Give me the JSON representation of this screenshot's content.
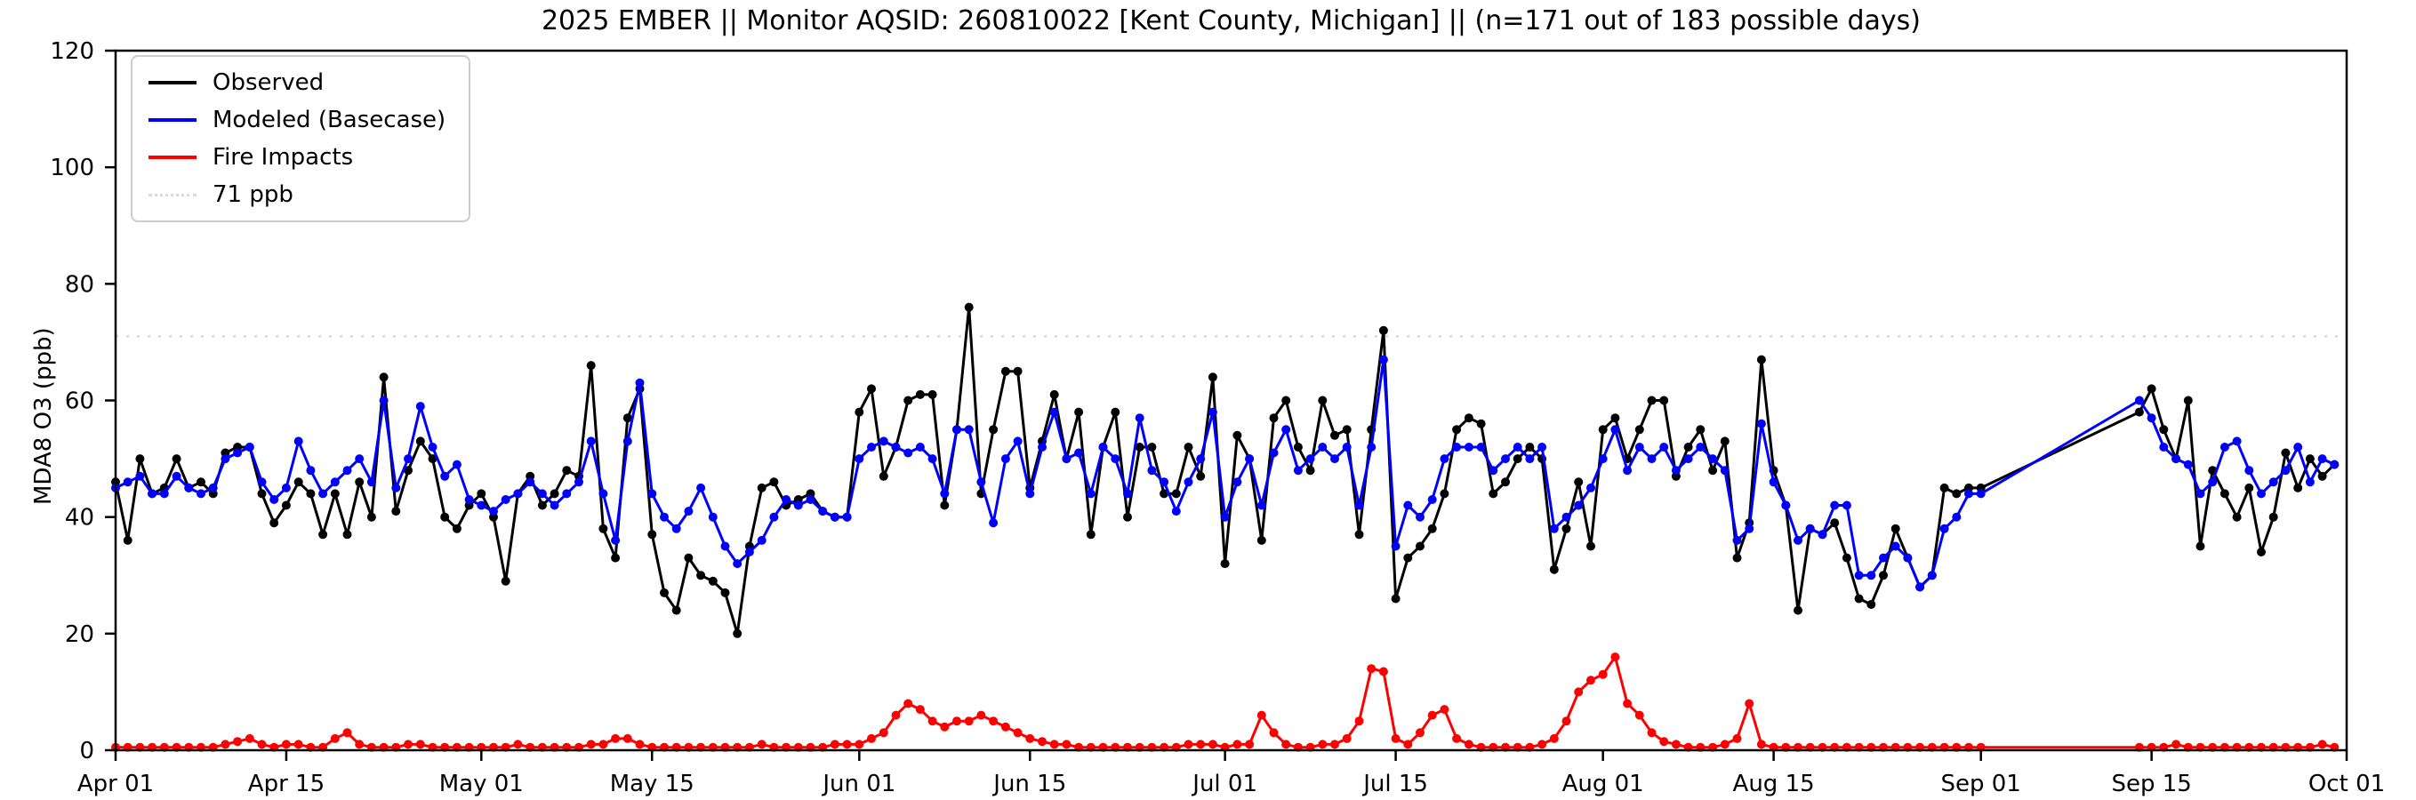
{
  "title": "2025 EMBER || Monitor AQSID: 260810022 [Kent County, Michigan] || (n=171 out of 183 possible days)",
  "chart_data": {
    "type": "line",
    "title": "2025 EMBER || Monitor AQSID: 260810022 [Kent County, Michigan] || (n=171 out of 183 possible days)",
    "xlabel": "",
    "ylabel": "MDA8 O3 (ppb)",
    "ylim": [
      0,
      120
    ],
    "yticks": [
      0,
      20,
      40,
      60,
      80,
      100,
      120
    ],
    "xlim": [
      0,
      183
    ],
    "xticks": [
      {
        "label": "Apr 01",
        "day": 0
      },
      {
        "label": "Apr 15",
        "day": 14
      },
      {
        "label": "May 01",
        "day": 30
      },
      {
        "label": "May 15",
        "day": 44
      },
      {
        "label": "Jun 01",
        "day": 61
      },
      {
        "label": "Jun 15",
        "day": 75
      },
      {
        "label": "Jul 01",
        "day": 91
      },
      {
        "label": "Jul 15",
        "day": 105
      },
      {
        "label": "Aug 01",
        "day": 122
      },
      {
        "label": "Aug 15",
        "day": 136
      },
      {
        "label": "Sep 01",
        "day": 153
      },
      {
        "label": "Sep 15",
        "day": 167
      },
      {
        "label": "Oct 01",
        "day": 183
      }
    ],
    "grid": false,
    "legend_position": "upper-left",
    "reference_line": {
      "label": "71 ppb",
      "value": 71,
      "color": "#d9d9d9",
      "style": "dotted"
    },
    "day_index_ranges": [
      [
        0,
        153
      ],
      [
        166,
        182
      ]
    ],
    "series": [
      {
        "id": "observed",
        "name": "Observed",
        "color": "#000000",
        "marker": "circle",
        "values": [
          46,
          36,
          50,
          44,
          45,
          50,
          45,
          46,
          44,
          51,
          52,
          52,
          44,
          39,
          42,
          46,
          44,
          37,
          44,
          37,
          46,
          40,
          64,
          41,
          48,
          53,
          50,
          40,
          38,
          42,
          44,
          40,
          29,
          44,
          47,
          42,
          44,
          48,
          47,
          66,
          38,
          33,
          57,
          62,
          37,
          27,
          24,
          33,
          30,
          29,
          27,
          20,
          35,
          45,
          46,
          42,
          43,
          44,
          41,
          40,
          40,
          58,
          62,
          47,
          52,
          60,
          61,
          61,
          42,
          55,
          76,
          44,
          55,
          65,
          65,
          45,
          53,
          61,
          50,
          58,
          37,
          52,
          58,
          40,
          52,
          52,
          44,
          44,
          52,
          47,
          64,
          32,
          54,
          50,
          36,
          57,
          60,
          52,
          48,
          60,
          54,
          55,
          37,
          55,
          72,
          26,
          33,
          35,
          38,
          44,
          55,
          57,
          56,
          44,
          46,
          50,
          52,
          50,
          31,
          38,
          46,
          35,
          55,
          57,
          50,
          55,
          60,
          60,
          47,
          52,
          55,
          48,
          53,
          33,
          39,
          67,
          48,
          42,
          24,
          38,
          37,
          39,
          33,
          26,
          25,
          30,
          38,
          33,
          28,
          30,
          45,
          44,
          45,
          45,
          58,
          62,
          55,
          50,
          60,
          35,
          48,
          44,
          40,
          45,
          34,
          40,
          51,
          45,
          50,
          47,
          49
        ]
      },
      {
        "id": "modeled",
        "name": "Modeled (Basecase)",
        "color": "#0000ff",
        "marker": "circle",
        "values": [
          45,
          46,
          47,
          44,
          44,
          47,
          45,
          44,
          45,
          50,
          51,
          52,
          46,
          43,
          45,
          53,
          48,
          44,
          46,
          48,
          50,
          46,
          60,
          45,
          50,
          59,
          52,
          47,
          49,
          43,
          42,
          41,
          43,
          44,
          46,
          44,
          42,
          44,
          46,
          53,
          44,
          36,
          53,
          63,
          44,
          40,
          38,
          41,
          45,
          40,
          35,
          32,
          34,
          36,
          40,
          43,
          42,
          43,
          41,
          40,
          40,
          50,
          52,
          53,
          52,
          51,
          52,
          50,
          44,
          55,
          55,
          46,
          39,
          50,
          53,
          44,
          52,
          58,
          50,
          51,
          44,
          52,
          50,
          44,
          57,
          48,
          46,
          41,
          46,
          50,
          58,
          40,
          46,
          50,
          42,
          51,
          55,
          48,
          50,
          52,
          50,
          52,
          42,
          52,
          67,
          35,
          42,
          40,
          43,
          50,
          52,
          52,
          52,
          48,
          50,
          52,
          50,
          52,
          38,
          40,
          42,
          45,
          50,
          55,
          48,
          52,
          50,
          52,
          48,
          50,
          52,
          50,
          48,
          36,
          38,
          56,
          46,
          42,
          36,
          38,
          37,
          42,
          42,
          30,
          30,
          33,
          35,
          33,
          28,
          30,
          38,
          40,
          44,
          44,
          60,
          57,
          52,
          50,
          49,
          44,
          46,
          52,
          53,
          48,
          44,
          46,
          48,
          52,
          46,
          50,
          49
        ]
      },
      {
        "id": "fire",
        "name": "Fire Impacts",
        "color": "#ff0000",
        "marker": "circle",
        "values": [
          0.5,
          0.5,
          0.5,
          0.5,
          0.5,
          0.5,
          0.5,
          0.5,
          0.5,
          1,
          1.5,
          2,
          1,
          0.5,
          1,
          1,
          0.5,
          0.5,
          2,
          3,
          1,
          0.5,
          0.5,
          0.5,
          1,
          1,
          0.5,
          0.5,
          0.5,
          0.5,
          0.5,
          0.5,
          0.5,
          1,
          0.5,
          0.5,
          0.5,
          0.5,
          0.5,
          1,
          1,
          2,
          2,
          1,
          0.5,
          0.5,
          0.5,
          0.5,
          0.5,
          0.5,
          0.5,
          0.5,
          0.5,
          1,
          0.5,
          0.5,
          0.5,
          0.5,
          0.5,
          1,
          1,
          1,
          2,
          3,
          6,
          8,
          7,
          5,
          4,
          5,
          5,
          6,
          5,
          4,
          3,
          2,
          1.5,
          1,
          1,
          0.5,
          0.5,
          0.5,
          0.5,
          0.5,
          0.5,
          0.5,
          0.5,
          0.5,
          1,
          1,
          1,
          0.5,
          1,
          1,
          6,
          3,
          1,
          0.5,
          0.5,
          1,
          1,
          2,
          5,
          14,
          13.5,
          2,
          1,
          3,
          6,
          7,
          2,
          1,
          0.5,
          0.5,
          0.5,
          0.5,
          0.5,
          1,
          2,
          5,
          10,
          12,
          13,
          16,
          8,
          6,
          3,
          1.5,
          1,
          0.5,
          0.5,
          0.5,
          1,
          2,
          8,
          1,
          0.5,
          0.5,
          0.5,
          0.5,
          0.5,
          0.5,
          0.5,
          0.5,
          0.5,
          0.5,
          0.5,
          0.5,
          0.5,
          0.5,
          0.5,
          0.5,
          0.5,
          0.5,
          0.5,
          0.5,
          0.5,
          1,
          0.5,
          0.5,
          0.5,
          0.5,
          0.5,
          0.5,
          0.5,
          0.5,
          0.5,
          0.5,
          0.5,
          1,
          0.5
        ]
      }
    ]
  }
}
